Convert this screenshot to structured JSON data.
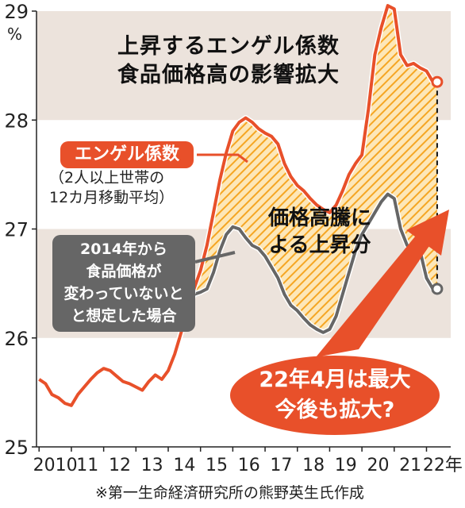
{
  "title_lines": [
    "上昇するエンゲル係数",
    "食品価格高の影響拡大"
  ],
  "unit": "%",
  "footnote": "※第一生命経済研究所の熊野英生氏作成",
  "labels": {
    "engel_badge": "エンゲル係数",
    "engel_note": [
      "（2人以上世帯の",
      "12カ月移動平均）"
    ],
    "counterfactual_lines": [
      "2014年から",
      "食品価格が",
      "変わっていないと",
      "と想定した場合"
    ],
    "rise_lines": [
      "価格高騰に",
      "よる上昇分"
    ],
    "callout_lines": [
      "22年4月は最大",
      "今後も拡大?"
    ]
  },
  "colors": {
    "actual_line": "#e8502a",
    "counterfactual_line": "#666666",
    "fill_hatch": "#f5a623",
    "band": "#ece3dc"
  },
  "chart_data": {
    "type": "line",
    "ylim": [
      25,
      29
    ],
    "yticks": [
      25,
      26,
      27,
      28,
      29
    ],
    "x_tick_labels": [
      "2010",
      "11",
      "12",
      "13",
      "14",
      "15",
      "16",
      "17",
      "18",
      "19",
      "20",
      "21",
      "22年"
    ],
    "series": [
      {
        "name": "エンゲル係数",
        "x": [
          2010.0,
          2010.2,
          2010.4,
          2010.6,
          2010.8,
          2011.0,
          2011.2,
          2011.4,
          2011.6,
          2011.8,
          2012.0,
          2012.2,
          2012.4,
          2012.6,
          2012.8,
          2013.0,
          2013.2,
          2013.4,
          2013.6,
          2013.8,
          2014.0,
          2014.2,
          2014.4,
          2014.6,
          2014.8,
          2015.0,
          2015.2,
          2015.4,
          2015.6,
          2015.8,
          2016.0,
          2016.2,
          2016.4,
          2016.6,
          2016.8,
          2017.0,
          2017.2,
          2017.4,
          2017.6,
          2017.8,
          2018.0,
          2018.2,
          2018.4,
          2018.6,
          2018.8,
          2019.0,
          2019.2,
          2019.4,
          2019.6,
          2019.8,
          2020.0,
          2020.2,
          2020.4,
          2020.6,
          2020.8,
          2021.0,
          2021.2,
          2021.4,
          2021.6,
          2021.8,
          2022.0,
          2022.2,
          2022.33
        ],
        "values": [
          25.62,
          25.58,
          25.48,
          25.45,
          25.4,
          25.38,
          25.48,
          25.55,
          25.62,
          25.68,
          25.72,
          25.7,
          25.65,
          25.6,
          25.58,
          25.55,
          25.52,
          25.6,
          25.66,
          25.62,
          25.7,
          25.85,
          26.05,
          26.25,
          26.45,
          26.62,
          26.85,
          27.15,
          27.45,
          27.7,
          27.9,
          27.98,
          28.02,
          27.98,
          27.92,
          27.88,
          27.85,
          27.78,
          27.6,
          27.48,
          27.4,
          27.35,
          27.28,
          27.22,
          27.18,
          27.15,
          27.22,
          27.35,
          27.5,
          27.6,
          27.68,
          28.1,
          28.6,
          28.85,
          29.05,
          29.02,
          28.6,
          28.5,
          28.52,
          28.48,
          28.45,
          28.35,
          28.35
        ]
      },
      {
        "name": "2014年から食品価格が変わっていないと想定した場合",
        "x": [
          2014.0,
          2014.2,
          2014.4,
          2014.6,
          2014.8,
          2015.0,
          2015.2,
          2015.4,
          2015.6,
          2015.8,
          2016.0,
          2016.2,
          2016.4,
          2016.6,
          2016.8,
          2017.0,
          2017.2,
          2017.4,
          2017.6,
          2017.8,
          2018.0,
          2018.2,
          2018.4,
          2018.6,
          2018.8,
          2019.0,
          2019.2,
          2019.4,
          2019.6,
          2019.8,
          2020.0,
          2020.2,
          2020.4,
          2020.6,
          2020.8,
          2021.0,
          2021.2,
          2021.4,
          2021.6,
          2021.8,
          2022.0,
          2022.2,
          2022.33
        ],
        "values": [
          25.7,
          25.85,
          26.05,
          26.25,
          26.4,
          26.42,
          26.45,
          26.6,
          26.8,
          26.95,
          27.02,
          27.0,
          26.92,
          26.85,
          26.82,
          26.75,
          26.65,
          26.55,
          26.4,
          26.3,
          26.25,
          26.18,
          26.12,
          26.08,
          26.05,
          26.08,
          26.2,
          26.4,
          26.6,
          26.8,
          26.95,
          27.05,
          27.15,
          27.25,
          27.32,
          27.28,
          27.0,
          26.85,
          26.82,
          26.8,
          26.55,
          26.45,
          26.45
        ]
      }
    ]
  }
}
